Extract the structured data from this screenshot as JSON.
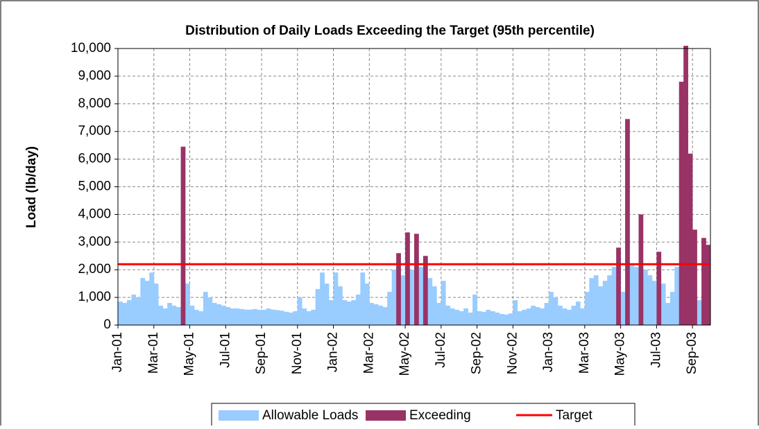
{
  "chart_data": {
    "type": "bar",
    "title": "Distribution of Daily Loads Exceeding the Target (95th percentile)",
    "y_label": "Load (lb/day)",
    "categories": [
      "Jan-01",
      null,
      null,
      null,
      null,
      null,
      null,
      null,
      "Mar-01",
      null,
      null,
      null,
      null,
      null,
      null,
      null,
      "May-01",
      null,
      null,
      null,
      null,
      null,
      null,
      null,
      "Jul-01",
      null,
      null,
      null,
      null,
      null,
      null,
      null,
      "Sep-01",
      null,
      null,
      null,
      null,
      null,
      null,
      null,
      "Nov-01",
      null,
      null,
      null,
      null,
      null,
      null,
      null,
      "Jan-02",
      null,
      null,
      null,
      null,
      null,
      null,
      null,
      "Mar-02",
      null,
      null,
      null,
      null,
      null,
      null,
      null,
      "May-02",
      null,
      null,
      null,
      null,
      null,
      null,
      null,
      "Jul-02",
      null,
      null,
      null,
      null,
      null,
      null,
      null,
      "Sep-02",
      null,
      null,
      null,
      null,
      null,
      null,
      null,
      "Nov-02",
      null,
      null,
      null,
      null,
      null,
      null,
      null,
      "Jan-03",
      null,
      null,
      null,
      null,
      null,
      null,
      null,
      "Mar-03",
      null,
      null,
      null,
      null,
      null,
      null,
      null,
      "May-03",
      null,
      null,
      null,
      null,
      null,
      null,
      null,
      "Jul-03",
      null,
      null,
      null,
      null,
      null,
      null,
      null,
      "Sep-03",
      null,
      null,
      null
    ],
    "series": [
      {
        "name": "Allowable Loads",
        "color": "#99ccff",
        "values": [
          850,
          800,
          900,
          1100,
          1000,
          1700,
          1600,
          1900,
          1500,
          700,
          600,
          800,
          700,
          650,
          null,
          1500,
          700,
          550,
          500,
          1200,
          1000,
          800,
          750,
          700,
          650,
          600,
          600,
          580,
          560,
          560,
          580,
          550,
          550,
          600,
          560,
          540,
          520,
          480,
          450,
          500,
          1000,
          600,
          500,
          550,
          1300,
          1900,
          1500,
          900,
          1900,
          1400,
          900,
          850,
          900,
          1100,
          1900,
          1500,
          800,
          750,
          700,
          650,
          1200,
          2000,
          null,
          1800,
          null,
          2000,
          null,
          2100,
          null,
          1700,
          1400,
          800,
          1600,
          700,
          600,
          550,
          500,
          600,
          450,
          1100,
          500,
          480,
          550,
          500,
          450,
          400,
          380,
          420,
          900,
          500,
          550,
          600,
          700,
          650,
          600,
          800,
          1200,
          1000,
          700,
          600,
          550,
          700,
          850,
          600,
          1200,
          1700,
          1800,
          1400,
          1600,
          1800,
          2100,
          null,
          1200,
          null,
          2200,
          2100,
          null,
          2000,
          1800,
          1600,
          null,
          1500,
          800,
          1200,
          2100,
          null,
          null,
          null,
          null,
          900,
          null,
          null
        ]
      },
      {
        "name": "Exceeding",
        "color": "#993366",
        "values": [
          null,
          null,
          null,
          null,
          null,
          null,
          null,
          null,
          null,
          null,
          null,
          null,
          null,
          null,
          6450,
          null,
          null,
          null,
          null,
          null,
          null,
          null,
          null,
          null,
          null,
          null,
          null,
          null,
          null,
          null,
          null,
          null,
          null,
          null,
          null,
          null,
          null,
          null,
          null,
          null,
          null,
          null,
          null,
          null,
          null,
          null,
          null,
          null,
          null,
          null,
          null,
          null,
          null,
          null,
          null,
          null,
          null,
          null,
          null,
          null,
          null,
          null,
          2600,
          null,
          3350,
          null,
          3300,
          null,
          2500,
          null,
          null,
          null,
          null,
          null,
          null,
          null,
          null,
          null,
          null,
          null,
          null,
          null,
          null,
          null,
          null,
          null,
          null,
          null,
          null,
          null,
          null,
          null,
          null,
          null,
          null,
          null,
          null,
          null,
          null,
          null,
          null,
          null,
          null,
          null,
          null,
          null,
          null,
          null,
          null,
          null,
          null,
          2800,
          null,
          7450,
          null,
          null,
          4000,
          null,
          null,
          null,
          2650,
          null,
          null,
          null,
          null,
          8800,
          10100,
          6200,
          3450,
          null,
          3150,
          2900
        ]
      }
    ],
    "target": {
      "name": "Target",
      "color": "#ff0000",
      "value": 2200
    },
    "ylim": [
      0,
      10000
    ],
    "yticks": [
      0,
      {
        "value": 1000,
        "label": "1,000"
      },
      {
        "value": 2000,
        "label": "2,000"
      },
      {
        "value": 3000,
        "label": "3,000"
      },
      {
        "value": 4000,
        "label": "4,000"
      },
      {
        "value": 5000,
        "label": "5,000"
      },
      {
        "value": 6000,
        "label": "6,000"
      },
      {
        "value": 7000,
        "label": "7,000"
      },
      {
        "value": 8000,
        "label": "8,000"
      },
      {
        "value": 9000,
        "label": "9,000"
      },
      {
        "value": 10000,
        "label": "10,000"
      }
    ],
    "grid": true
  }
}
